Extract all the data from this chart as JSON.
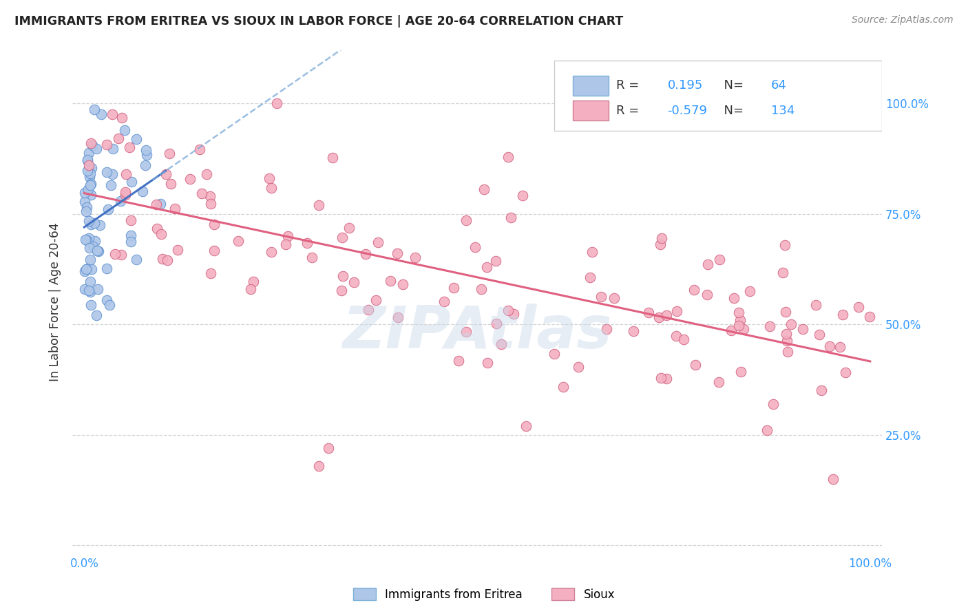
{
  "title": "IMMIGRANTS FROM ERITREA VS SIOUX IN LABOR FORCE | AGE 20-64 CORRELATION CHART",
  "source": "Source: ZipAtlas.com",
  "ylabel": "In Labor Force | Age 20-64",
  "legend_eritrea_r": "0.195",
  "legend_eritrea_n": "64",
  "legend_sioux_r": "-0.579",
  "legend_sioux_n": "134",
  "eritrea_color": "#aec6e8",
  "sioux_color": "#f4afc0",
  "eritrea_line_color": "#4472c4",
  "sioux_line_color": "#e06080",
  "eritrea_line_dash_color": "#7aa8d8",
  "watermark_color": "#c8d8ea",
  "background_color": "#ffffff",
  "grid_color": "#d0d0d0",
  "axis_label_color": "#3399ff",
  "title_color": "#222222",
  "source_color": "#888888"
}
